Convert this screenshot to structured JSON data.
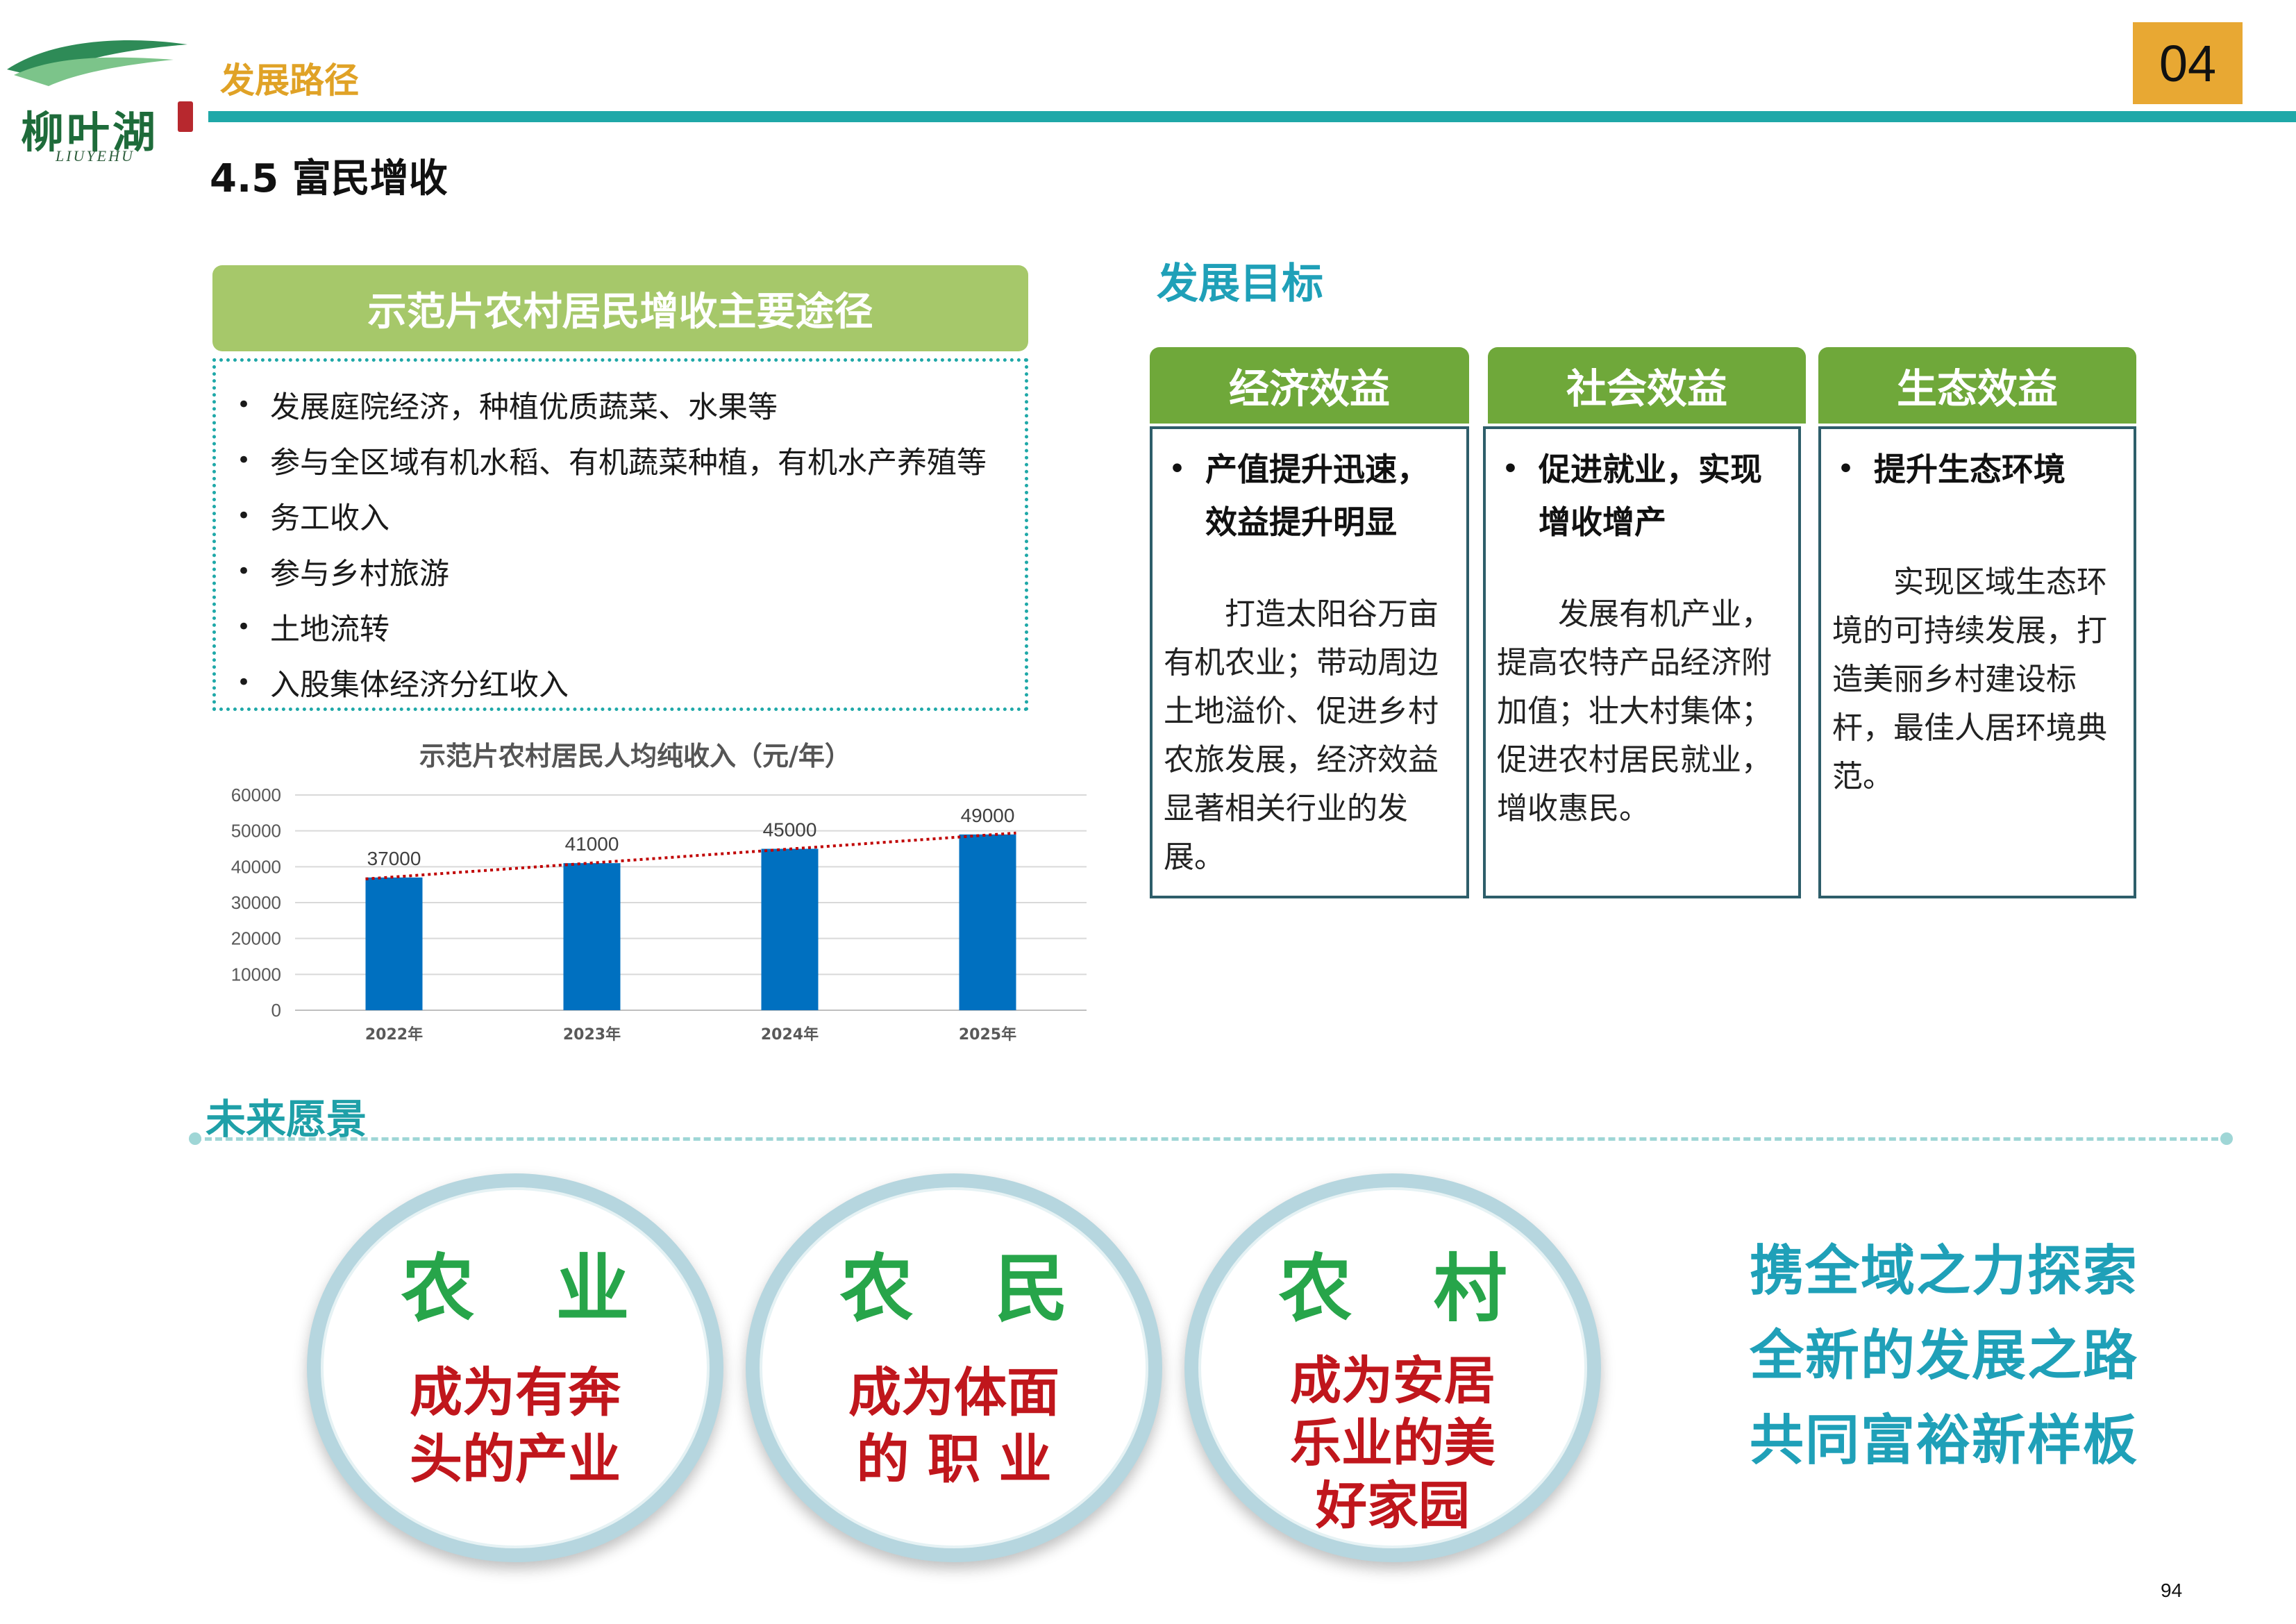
{
  "header": {
    "logo_text": "柳叶湖",
    "logo_sub": "LIUYEHU",
    "section": "发展路径",
    "page_badge": "04",
    "title": "4.5 富民增收"
  },
  "routes": {
    "title": "示范片农村居民增收主要途径",
    "items": [
      "发展庭院经济，种植优质蔬菜、水果等",
      "参与全区域有机水稻、有机蔬菜种植，有机水产养殖等",
      "务工收入",
      "参与乡村旅游",
      "土地流转",
      "入股集体经济分红收入"
    ]
  },
  "chart_data": {
    "type": "bar",
    "title": "示范片农村居民人均纯收入（元/年）",
    "categories": [
      "2022年",
      "2023年",
      "2024年",
      "2025年"
    ],
    "values": [
      37000,
      41000,
      45000,
      49000
    ],
    "ylim": [
      0,
      60000
    ],
    "yticks": [
      0,
      10000,
      20000,
      30000,
      40000,
      50000,
      60000
    ],
    "grid": true,
    "trendline": "linear",
    "colors": {
      "bar": "#0070c0",
      "trend": "#c00000"
    }
  },
  "goals": {
    "title": "发展目标",
    "cards": [
      {
        "head": "经济效益",
        "bullet_1": "产值提升迅速，",
        "bullet_2": "效益提升明显",
        "text": "打造太阳谷万亩有机农业；带动周边土地溢价、促进乡村农旅发展，经济效益显著相关行业的发展。"
      },
      {
        "head": "社会效益",
        "bullet_1": "促进就业，实现",
        "bullet_2": "增收增产",
        "text": "发展有机产业，提高农特产品经济附加值；壮大村集体；促进农村居民就业，增收惠民。"
      },
      {
        "head": "生态效益",
        "bullet_1": "提升生态环境",
        "bullet_2": "",
        "text": "实现区域生态环境的可持续发展，打造美丽乡村建设标杆，最佳人居环境典范。"
      }
    ]
  },
  "vision": {
    "title": "未来愿景",
    "circles": [
      {
        "title": "农 业",
        "line1": "成为有奔",
        "line2": "头的产业",
        "line3": ""
      },
      {
        "title": "农 民",
        "line1": "成为体面",
        "line2": "的 职 业",
        "line3": ""
      },
      {
        "title": "农 村",
        "line1": "成为安居",
        "line2": "乐业的美",
        "line3": "好家园"
      }
    ],
    "slogan": [
      "携全域之力探索",
      "全新的发展之路",
      "共同富裕新样板"
    ]
  },
  "page_number": "94",
  "colors": {
    "teal": "#1fa8a8",
    "orange": "#e8a833",
    "green": "#6fa83a",
    "light_green": "#a6c86a",
    "red": "#c0161c"
  }
}
